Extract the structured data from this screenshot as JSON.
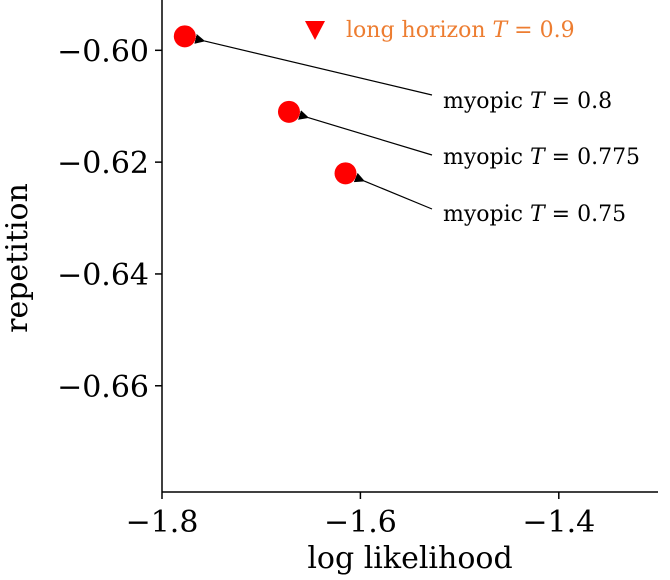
{
  "chart_data": {
    "type": "scatter",
    "xlabel": "log likelihood",
    "ylabel": "repetition",
    "xlim": [
      -1.8,
      -1.3
    ],
    "ylim": [
      -0.679,
      -0.591
    ],
    "xticks": [
      -1.8,
      -1.6,
      -1.4
    ],
    "xtick_labels": [
      "−1.8",
      "−1.6",
      "−1.4"
    ],
    "yticks": [
      -0.6,
      -0.62,
      -0.64,
      -0.66
    ],
    "ytick_labels": [
      "−0.60",
      "−0.62",
      "−0.64",
      "−0.66"
    ],
    "series": [
      {
        "name": "myopic",
        "marker": "circle",
        "color": "#ff0000",
        "points": [
          {
            "x": -1.777,
            "y": -0.5975,
            "label_prefix": "myopic ",
            "label_var": "T",
            "label_suffix": " = 0.8"
          },
          {
            "x": -1.672,
            "y": -0.611,
            "label_prefix": "myopic ",
            "label_var": "T",
            "label_suffix": " = 0.775"
          },
          {
            "x": -1.615,
            "y": -0.622,
            "label_prefix": "myopic ",
            "label_var": "T",
            "label_suffix": " = 0.75"
          }
        ]
      }
    ],
    "legend": {
      "placement": "top-right",
      "marker": "triangle-down",
      "marker_color": "#ff0000",
      "text_color": "#ed7d31",
      "label_prefix": "long horizon ",
      "label_var": "T",
      "label_suffix": " = 0.9"
    }
  }
}
